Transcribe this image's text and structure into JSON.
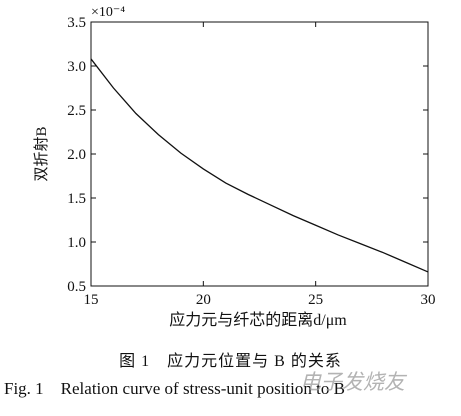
{
  "chart_data": {
    "type": "line",
    "ylabel": "双折射B",
    "xlabel": "应力元与纤芯的距离d/μm",
    "y_multiplier_label": "×10⁻⁴",
    "xlim": [
      15,
      30
    ],
    "ylim": [
      0.5,
      3.5
    ],
    "x_ticks": [
      "15",
      "20",
      "25",
      "30"
    ],
    "y_ticks": [
      "0.5",
      "1.0",
      "1.5",
      "2.0",
      "2.5",
      "3.0",
      "3.5"
    ],
    "grid": false,
    "series": [
      {
        "x": [
          15,
          16,
          17,
          18,
          19,
          20,
          21,
          22,
          23,
          24,
          25,
          26,
          27,
          28,
          29,
          30
        ],
        "y": [
          3.08,
          2.75,
          2.46,
          2.22,
          2.01,
          1.83,
          1.67,
          1.54,
          1.42,
          1.3,
          1.19,
          1.08,
          0.98,
          0.88,
          0.77,
          0.66
        ]
      }
    ]
  },
  "caption": {
    "cn": "图 1　应力元位置与 B 的关系",
    "en": "Fig. 1　Relation curve of stress-unit position to B"
  },
  "watermark": "电子发烧友",
  "colors": {
    "line": "#111111",
    "axis": "#111111"
  }
}
